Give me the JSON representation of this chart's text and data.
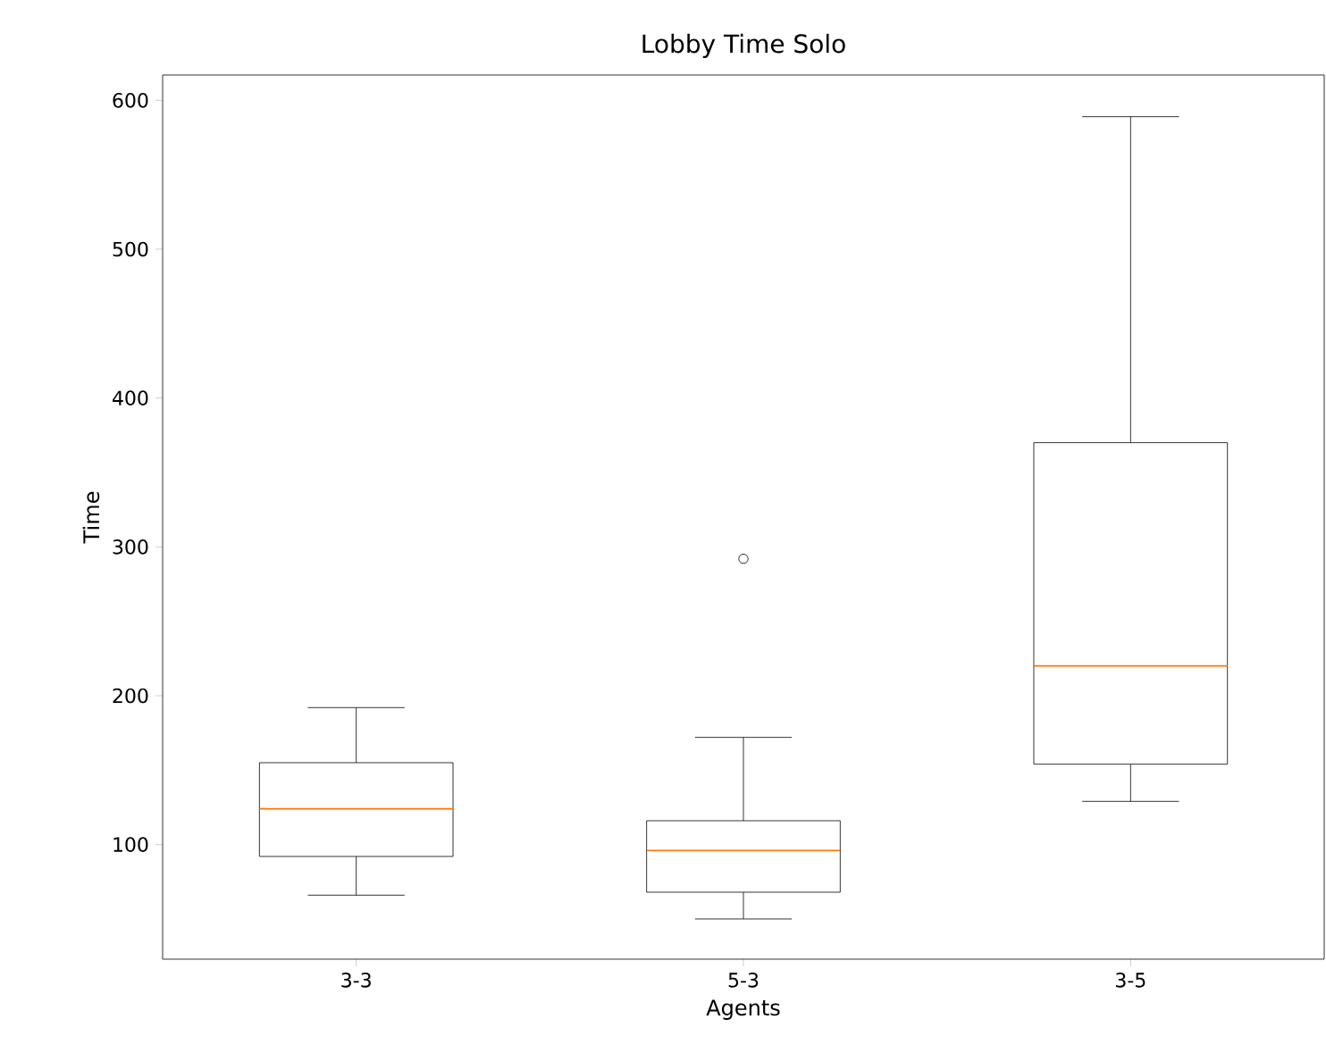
{
  "chart_data": {
    "type": "box",
    "title": "Lobby Time Solo",
    "xlabel": "Agents",
    "ylabel": "Time",
    "categories": [
      "3-3",
      "5-3",
      "3-5"
    ],
    "boxes": [
      {
        "low": 66,
        "q1": 92,
        "median": 124,
        "q3": 155,
        "high": 192
      },
      {
        "low": 50,
        "q1": 68,
        "median": 96,
        "q3": 116,
        "high": 172,
        "outliers": [
          292
        ]
      },
      {
        "low": 129,
        "q1": 154,
        "median": 220,
        "q3": 370,
        "high": 589
      }
    ],
    "ylim": [
      23,
      617
    ],
    "yticks": [
      100,
      200,
      300,
      400,
      500,
      600
    ],
    "grid": false
  }
}
